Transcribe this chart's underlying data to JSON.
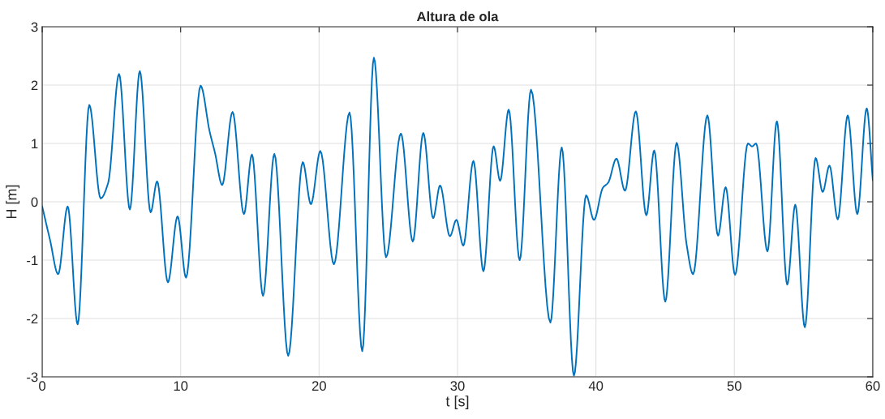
{
  "chart_data": {
    "type": "line",
    "title": "Altura de ola",
    "xlabel": "t [s]",
    "ylabel": "H [m]",
    "xlim": [
      0,
      60
    ],
    "ylim": [
      -3,
      3
    ],
    "xticks": [
      0,
      10,
      20,
      30,
      40,
      50,
      60
    ],
    "yticks": [
      -3,
      -2,
      -1,
      0,
      1,
      2,
      3
    ],
    "grid": true,
    "line_style": "solid",
    "series": [
      {
        "color": "#0072bd",
        "x": [
          0,
          0.57,
          1.15,
          1.84,
          2.56,
          3.4,
          4.22,
          4.77,
          5.55,
          6.33,
          7.05,
          7.83,
          8.3,
          9.08,
          9.78,
          10.39,
          11.44,
          12.09,
          12.48,
          13.0,
          13.75,
          14.57,
          15.15,
          15.95,
          16.77,
          17.77,
          18.82,
          19.41,
          20.09,
          21.07,
          22.2,
          23.12,
          23.96,
          24.84,
          25.91,
          26.77,
          27.53,
          28.24,
          28.74,
          29.45,
          29.92,
          30.42,
          31.15,
          31.87,
          32.61,
          33.08,
          33.7,
          34.49,
          35.31,
          36.71,
          37.53,
          38.41,
          39.29,
          39.86,
          40.5,
          40.89,
          41.48,
          42.1,
          42.88,
          43.64,
          44.21,
          45.01,
          45.83,
          46.55,
          47.02,
          48.05,
          48.82,
          49.37,
          50.05,
          50.98,
          51.28,
          51.57,
          52.39,
          53.07,
          53.82,
          54.4,
          55.09,
          55.87,
          56.38,
          56.87,
          57.47,
          58.19,
          58.88,
          59.56,
          60.0
        ],
        "values": [
          -0.08,
          -0.66,
          -1.24,
          -0.08,
          -2.1,
          1.66,
          0.06,
          0.33,
          2.19,
          -0.13,
          2.24,
          -0.18,
          0.35,
          -1.38,
          -0.25,
          -1.3,
          1.99,
          1.21,
          0.84,
          0.29,
          1.54,
          -0.21,
          0.81,
          -1.61,
          0.82,
          -2.64,
          0.68,
          -0.04,
          0.87,
          -1.07,
          1.53,
          -2.56,
          2.47,
          -0.95,
          1.17,
          -0.68,
          1.18,
          -0.28,
          0.28,
          -0.59,
          -0.31,
          -0.75,
          0.7,
          -1.19,
          0.95,
          0.36,
          1.58,
          -1.0,
          1.92,
          -2.07,
          0.93,
          -2.98,
          0.11,
          -0.31,
          0.24,
          0.33,
          0.74,
          0.19,
          1.55,
          -0.23,
          0.88,
          -1.71,
          1.01,
          -0.73,
          -1.24,
          1.48,
          -0.58,
          0.25,
          -1.25,
          1.0,
          0.95,
          1.0,
          -0.85,
          1.38,
          -1.42,
          -0.05,
          -2.15,
          0.75,
          0.17,
          0.62,
          -0.3,
          1.48,
          -0.21,
          1.6,
          0.37
        ]
      }
    ]
  }
}
